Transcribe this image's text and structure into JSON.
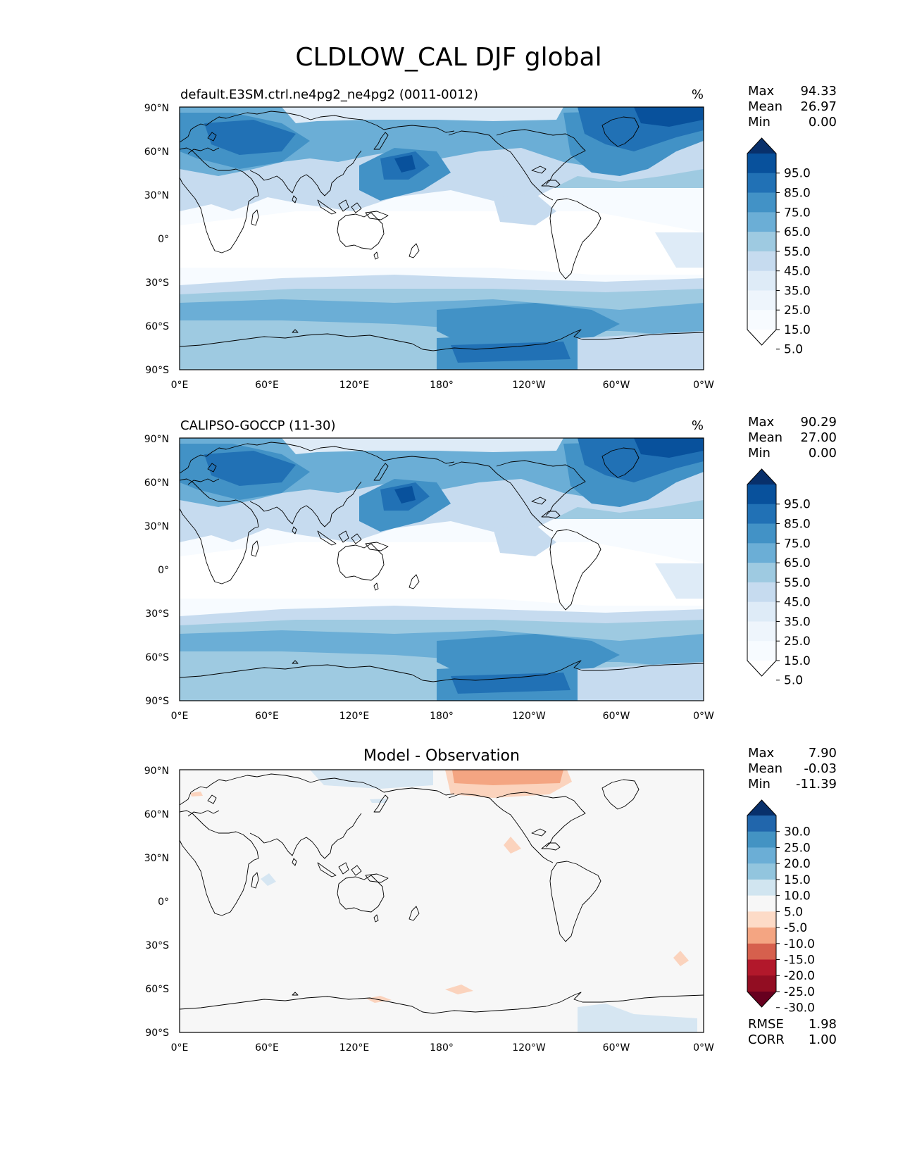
{
  "figure": {
    "title": "CLDLOW_CAL DJF global"
  },
  "panels": [
    {
      "id": "test",
      "title_left": "default.E3SM.ctrl.ne4pg2_ne4pg2 (0011-0012)",
      "title_center": "",
      "units": "%",
      "stats": [
        {
          "label": "Max",
          "value": "94.33"
        },
        {
          "label": "Mean",
          "value": "26.97"
        },
        {
          "label": "Min",
          "value": "0.00"
        }
      ],
      "colorbar": {
        "labels": [
          "95.0",
          "85.0",
          "75.0",
          "65.0",
          "55.0",
          "45.0",
          "35.0",
          "25.0",
          "15.0",
          "5.0"
        ],
        "colors": [
          "#08306b",
          "#08519c",
          "#2171b5",
          "#4292c6",
          "#6baed6",
          "#9ecae1",
          "#c6dbef",
          "#deebf7",
          "#eef5fc",
          "#f7fbff",
          "#ffffff"
        ]
      },
      "footer_stats": []
    },
    {
      "id": "reference",
      "title_left": "CALIPSO-GOCCP (11-30)",
      "title_center": "",
      "units": "%",
      "stats": [
        {
          "label": "Max",
          "value": "90.29"
        },
        {
          "label": "Mean",
          "value": "27.00"
        },
        {
          "label": "Min",
          "value": "0.00"
        }
      ],
      "colorbar": {
        "labels": [
          "95.0",
          "85.0",
          "75.0",
          "65.0",
          "55.0",
          "45.0",
          "35.0",
          "25.0",
          "15.0",
          "5.0"
        ],
        "colors": [
          "#08306b",
          "#08519c",
          "#2171b5",
          "#4292c6",
          "#6baed6",
          "#9ecae1",
          "#c6dbef",
          "#deebf7",
          "#eef5fc",
          "#f7fbff",
          "#ffffff"
        ]
      },
      "footer_stats": []
    },
    {
      "id": "difference",
      "title_left": "",
      "title_center": "Model - Observation",
      "units": "",
      "stats": [
        {
          "label": "Max",
          "value": "7.90"
        },
        {
          "label": "Mean",
          "value": "-0.03"
        },
        {
          "label": "Min",
          "value": "-11.39"
        }
      ],
      "colorbar": {
        "labels": [
          "30.0",
          "25.0",
          "20.0",
          "15.0",
          "10.0",
          "5.0",
          "-5.0",
          "-10.0",
          "-15.0",
          "-20.0",
          "-25.0",
          "-30.0"
        ],
        "colors": [
          "#08306b",
          "#2166ac",
          "#4393c3",
          "#6baed6",
          "#92c5de",
          "#d1e5f0",
          "#f7f7f7",
          "#fddbc7",
          "#f4a582",
          "#d6604d",
          "#b2182b",
          "#920d22",
          "#67001f"
        ]
      },
      "footer_stats": [
        {
          "label": "RMSE",
          "value": "1.98"
        },
        {
          "label": "CORR",
          "value": "1.00"
        }
      ]
    }
  ],
  "axes": {
    "lat_ticks": [
      "90°N",
      "60°N",
      "30°N",
      "0°",
      "30°S",
      "60°S",
      "90°S"
    ],
    "lon_ticks": [
      "0°E",
      "60°E",
      "120°E",
      "180°",
      "120°W",
      "60°W",
      "0°W"
    ]
  },
  "map_colors": {
    "seq_scale": [
      "#ffffff",
      "#f7fbff",
      "#eef5fc",
      "#deebf7",
      "#c6dbef",
      "#9ecae1",
      "#6baed6",
      "#4292c6",
      "#2171b5",
      "#08519c",
      "#08306b"
    ],
    "diff_background": "#f7f7f7",
    "diff_positive": "#fbd3bd",
    "diff_negative": "#d6e6f2",
    "coastline": "#000000"
  }
}
